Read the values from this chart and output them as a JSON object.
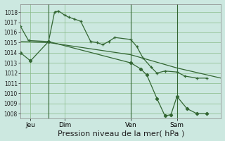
{
  "background_color": "#cce8e0",
  "grid_color": "#88bb88",
  "line_color": "#336633",
  "xlabel": "Pression niveau de la mer( hPa )",
  "xlabel_fontsize": 8,
  "ylim": [
    1007.5,
    1018.8
  ],
  "yticks": [
    1008,
    1009,
    1010,
    1011,
    1012,
    1013,
    1014,
    1015,
    1016,
    1017,
    1018
  ],
  "xlim": [
    0,
    100
  ],
  "xtick_positions": [
    5,
    22,
    55,
    78
  ],
  "xtick_labels": [
    "Jeu",
    "Dim",
    "Ven",
    "Sam"
  ],
  "vlines": [
    14,
    55,
    78
  ],
  "series1_x": [
    0,
    4,
    14,
    17,
    19,
    22,
    24,
    27,
    30,
    35,
    38,
    41,
    44,
    47,
    55,
    58,
    61,
    65,
    68,
    72,
    78,
    82,
    88,
    93
  ],
  "series1_y": [
    1016.6,
    1015.2,
    1015.1,
    1018.0,
    1018.1,
    1017.7,
    1017.5,
    1017.3,
    1017.1,
    1015.1,
    1015.0,
    1014.8,
    1015.1,
    1015.5,
    1015.3,
    1014.6,
    1013.5,
    1012.6,
    1012.0,
    1012.2,
    1012.1,
    1011.7,
    1011.5,
    1011.5
  ],
  "series2_x": [
    0,
    5,
    14,
    55,
    60,
    63,
    68,
    72,
    75,
    78,
    83,
    88,
    93
  ],
  "series2_y": [
    1014.0,
    1013.2,
    1015.1,
    1013.0,
    1012.4,
    1011.8,
    1009.5,
    1007.8,
    1007.9,
    1009.7,
    1008.5,
    1008.0,
    1008.0
  ],
  "series3_x": [
    0,
    14,
    55,
    78,
    100
  ],
  "series3_y": [
    1015.1,
    1015.0,
    1013.8,
    1012.5,
    1011.5
  ]
}
